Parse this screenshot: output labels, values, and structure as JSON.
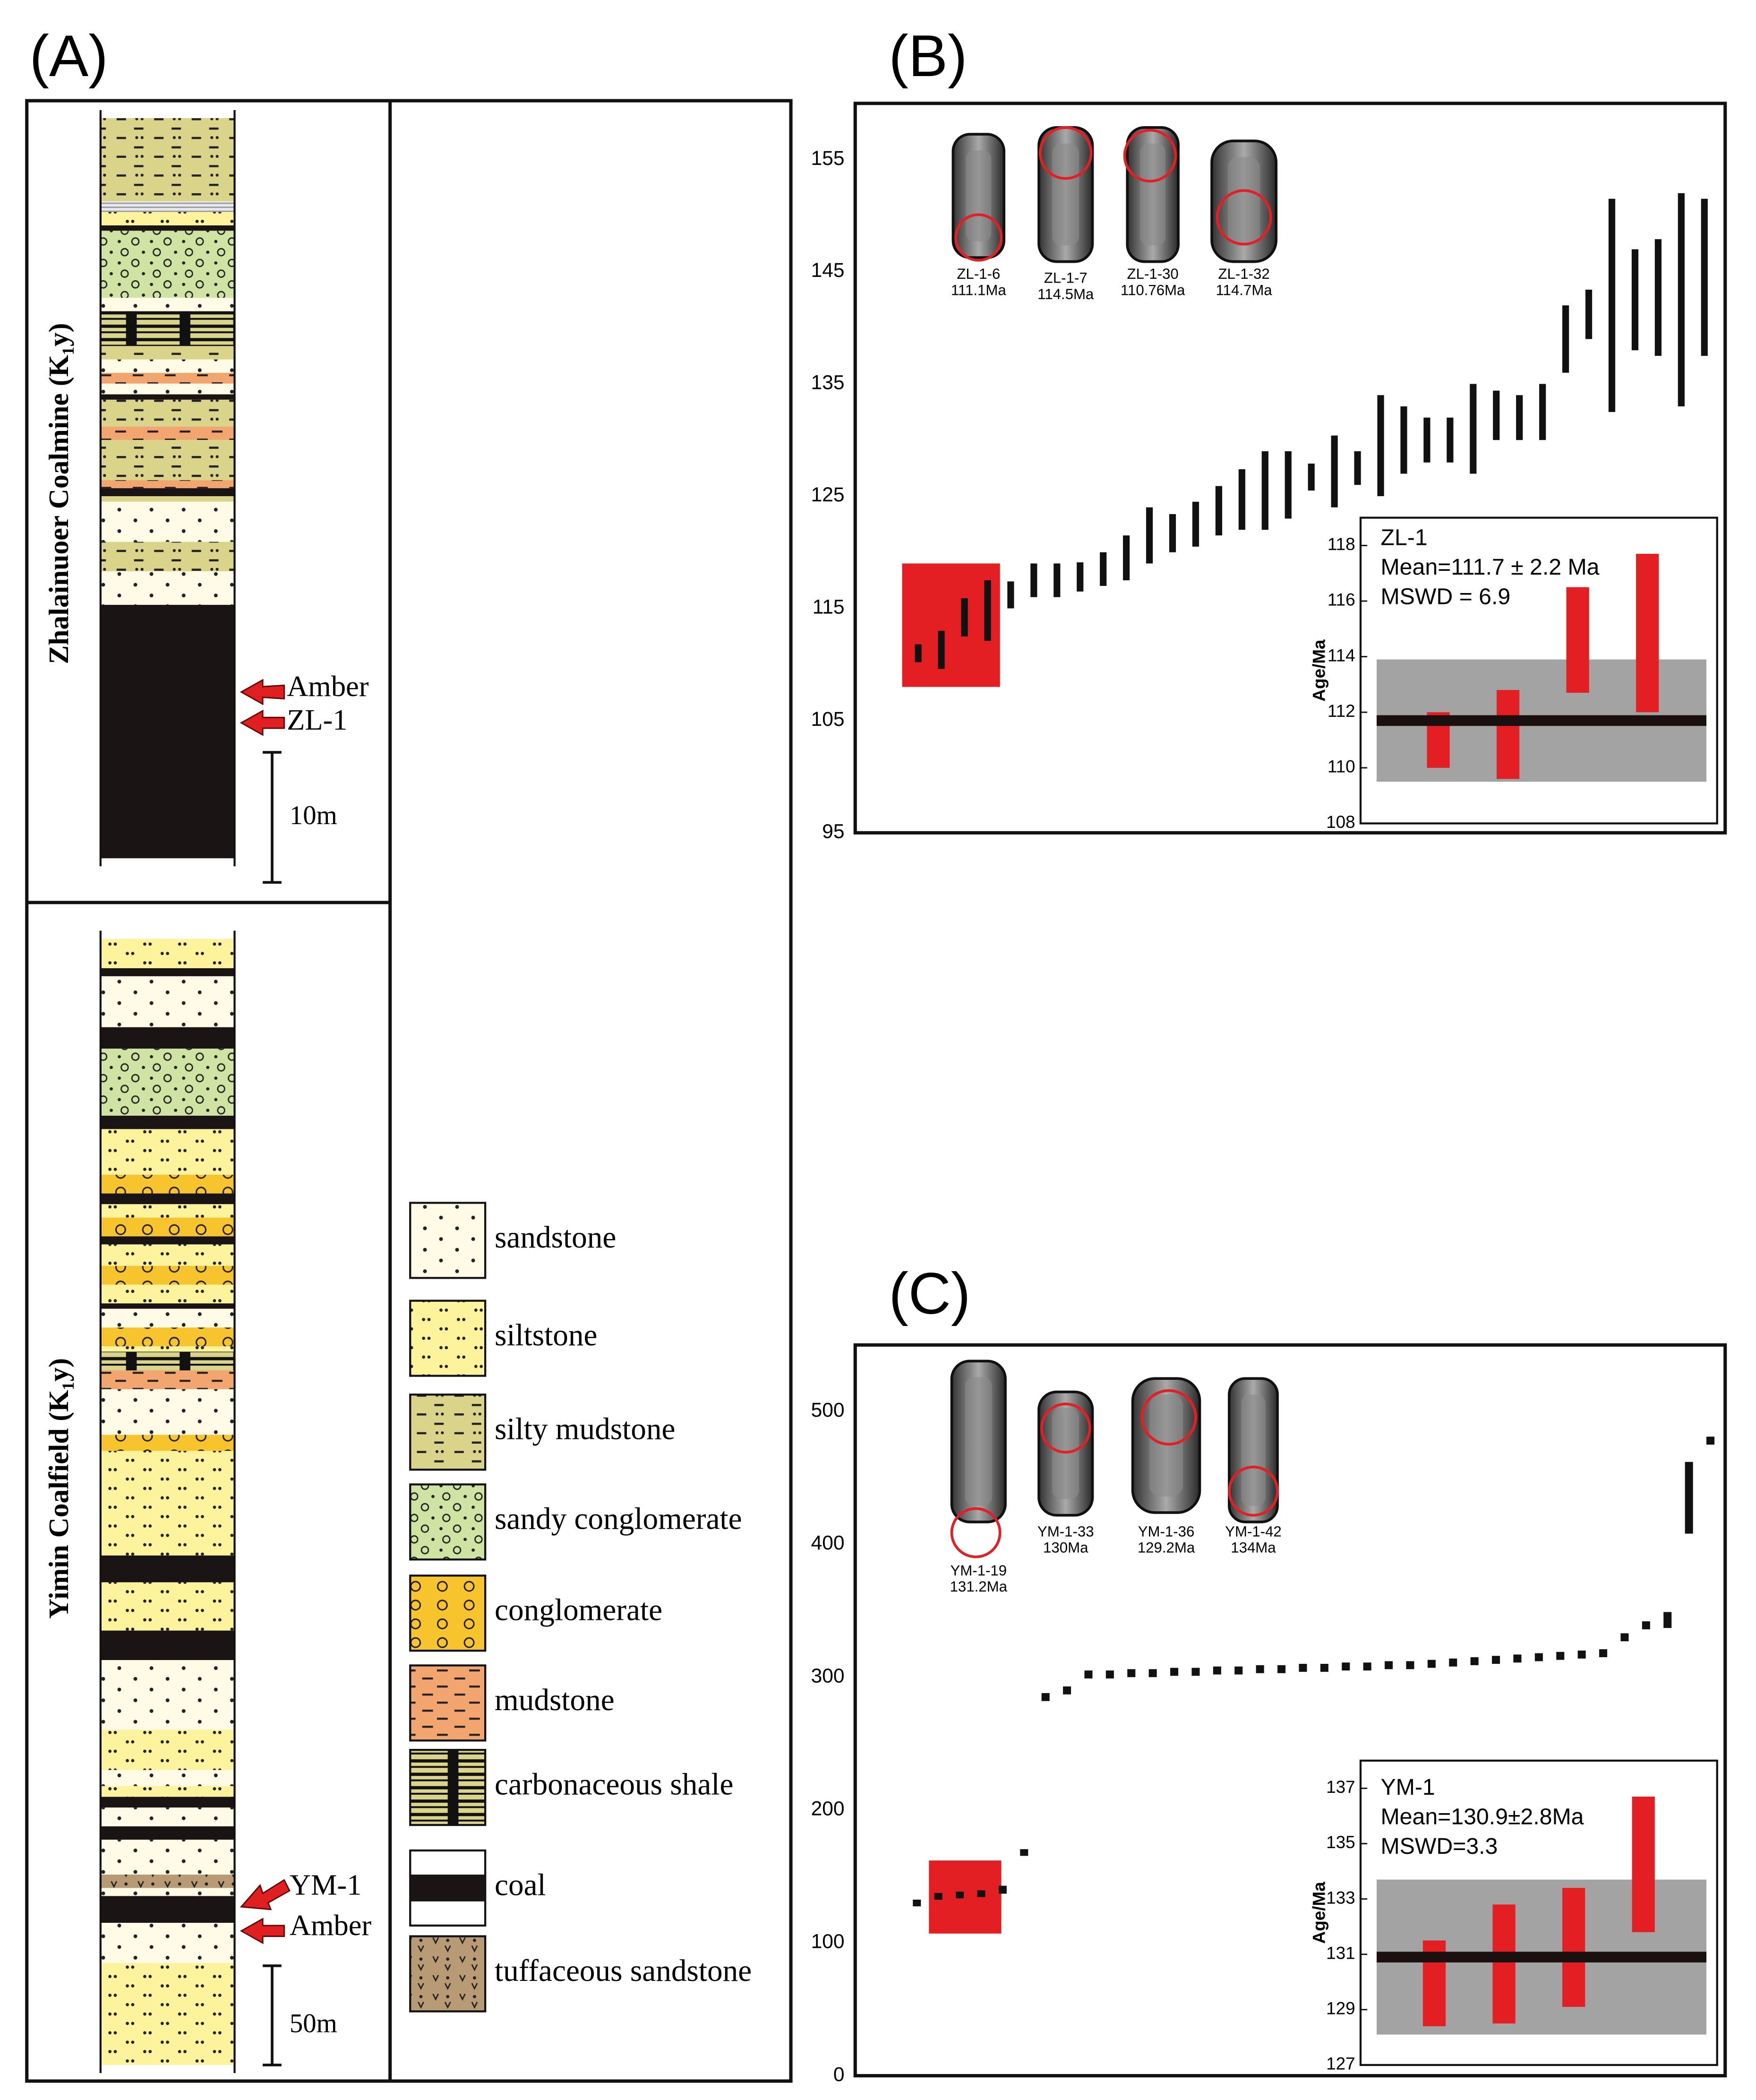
{
  "panel_labels": [
    "(A)",
    "(B)",
    "(C)"
  ],
  "column": {
    "formations": [
      "Zhalainuoer Coalmine (K₁y)",
      "Yimin Coalfield (K₁y)"
    ],
    "top_annotations": [
      "Amber",
      "ZL-1",
      "10m"
    ],
    "bottom_annotations": [
      "YM-1",
      "Amber",
      "50m"
    ],
    "legend": [
      "sandstone",
      "siltstone",
      "silty mudstone",
      "sandy conglomerate",
      "conglomerate",
      "mudstone",
      "carbonaceous shale",
      "coal",
      "tuffaceous sandstone"
    ]
  },
  "chart_data": [
    {
      "type": "errorbar",
      "ylim": [
        95,
        160
      ],
      "yticks": [
        95,
        105,
        115,
        125,
        135,
        145,
        155
      ],
      "values": [
        111,
        111.3,
        114.2,
        114.8,
        116.2,
        117.5,
        117.5,
        117.8,
        118.5,
        119.5,
        121.5,
        121.7,
        122.5,
        123.7,
        124.7,
        125.5,
        126,
        126.7,
        127.2,
        127.5,
        129.5,
        130,
        130,
        130,
        131,
        132.2,
        132,
        132.5,
        139,
        141.2,
        142,
        142.5,
        142.7,
        142.5,
        144.5
      ],
      "errors": [
        0.8,
        1.7,
        1.7,
        2.7,
        1.2,
        1.5,
        1.5,
        1.3,
        1.5,
        2,
        2.5,
        1.7,
        2,
        2.2,
        2.7,
        3.5,
        3,
        1.2,
        3.2,
        1.5,
        4.5,
        3,
        2,
        2,
        4,
        2.2,
        2,
        2.5,
        3,
        2.2,
        9.5,
        4.5,
        5.2,
        9.5,
        7
      ],
      "highlight": [
        108,
        119
      ],
      "grains": [
        {
          "id": "ZL-1-6",
          "age": "111.1Ma"
        },
        {
          "id": "ZL-1-7",
          "age": "114.5Ma"
        },
        {
          "id": "ZL-1-30",
          "age": "110.76Ma"
        },
        {
          "id": "ZL-1-32",
          "age": "114.7Ma"
        }
      ]
    },
    {
      "type": "errorbar",
      "title": "ZL-1",
      "annotations": [
        "Mean=111.7 ± 2.2 Ma",
        "MSWD = 6.9"
      ],
      "y_label": "Age/Ma",
      "ylim": [
        108,
        119
      ],
      "yticks": [
        108,
        110,
        112,
        114,
        116,
        118
      ],
      "values": [
        111,
        111.2,
        114.6,
        114.85
      ],
      "errors": [
        1,
        1.6,
        1.9,
        2.85
      ],
      "mean": 111.7,
      "mean_error": 2.2
    },
    {
      "type": "errorbar",
      "ylim": [
        0,
        550
      ],
      "yticks": [
        0,
        100,
        200,
        300,
        400,
        500
      ],
      "values": [
        130,
        135,
        136,
        137,
        140,
        168,
        285,
        290,
        302,
        302,
        303,
        303,
        304,
        304,
        305,
        305,
        306,
        306,
        307,
        307,
        308,
        308,
        309,
        309,
        310,
        311,
        312,
        313,
        314,
        315,
        316,
        317,
        318,
        330,
        339,
        343,
        435,
        478
      ],
      "errors": [
        2,
        2,
        2,
        2,
        3,
        2,
        3,
        3,
        3,
        3,
        3,
        3,
        3,
        3,
        3,
        3,
        3,
        3,
        3,
        3,
        3,
        3,
        3,
        3,
        3,
        3,
        3,
        3,
        3,
        3,
        3,
        3,
        3,
        3,
        3,
        6,
        27,
        3
      ],
      "highlight": [
        107,
        162
      ],
      "grains": [
        {
          "id": "YM-1-19",
          "age": "131.2Ma"
        },
        {
          "id": "YM-1-33",
          "age": "130Ma"
        },
        {
          "id": "YM-1-36",
          "age": "129.2Ma"
        },
        {
          "id": "YM-1-42",
          "age": "134Ma"
        }
      ]
    },
    {
      "type": "errorbar",
      "title": "YM-1",
      "annotations": [
        "Mean=130.9±2.8Ma",
        "MSWD=3.3"
      ],
      "y_label": "Age/Ma",
      "ylim": [
        127,
        138
      ],
      "yticks": [
        127,
        129,
        131,
        133,
        135,
        137
      ],
      "values": [
        129.95,
        130.65,
        131.25,
        134.25
      ],
      "errors": [
        1.55,
        2.15,
        2.15,
        2.45
      ],
      "mean": 130.9,
      "mean_error": 2.8
    }
  ]
}
